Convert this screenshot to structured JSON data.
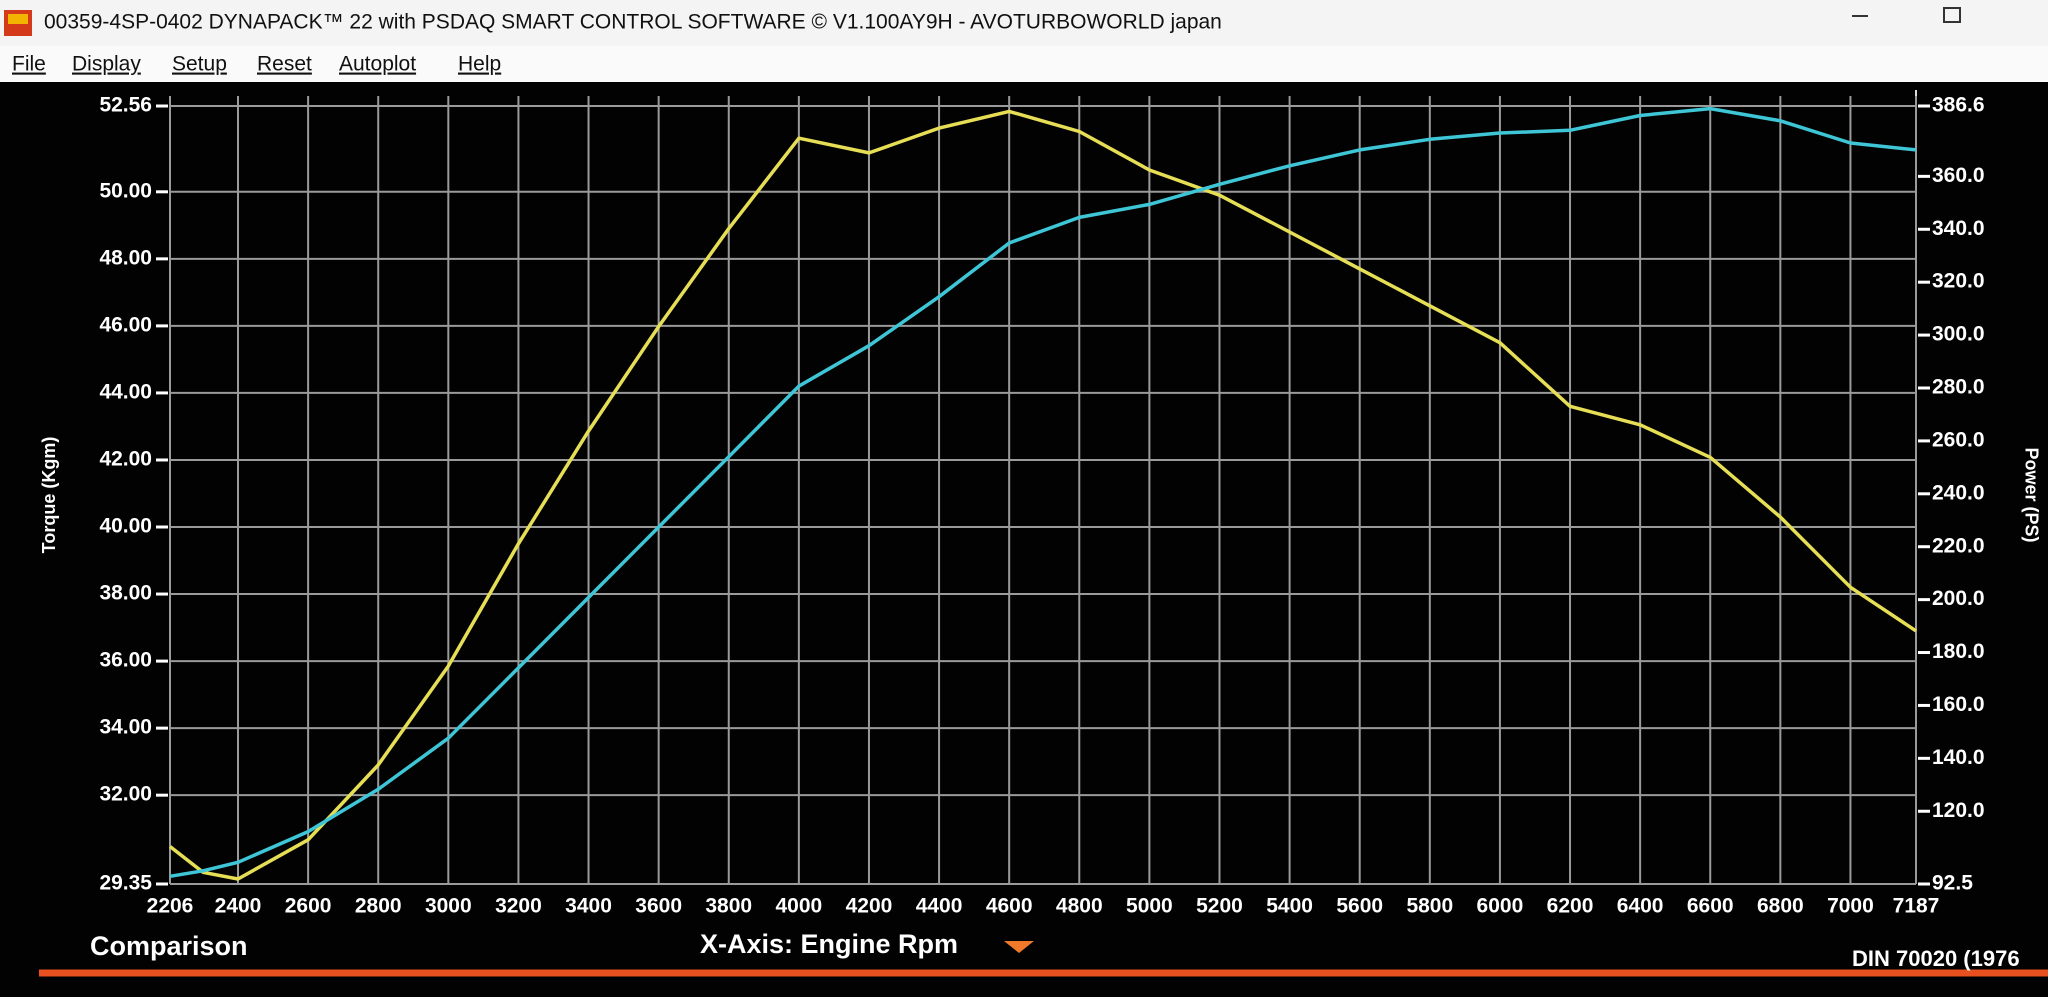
{
  "window": {
    "title": "00359-4SP-0402 DYNAPACK™ 22 with PSDAQ SMART CONTROL SOFTWARE © V1.100AY9H - AVOTURBOWORLD japan",
    "menu": [
      "File",
      "Display",
      "Setup",
      "Reset",
      "Autoplot",
      "Help"
    ]
  },
  "footer": {
    "left": "Comparison",
    "x_axis_selector": "X-Axis: Engine Rpm",
    "standard": "DIN 70020 (1976"
  },
  "chart_data": {
    "type": "line",
    "y_label": "Torque (Kgm)",
    "y2_label": "Power (PS)",
    "x": [
      2206,
      2300,
      2400,
      2600,
      2800,
      3000,
      3200,
      3400,
      3600,
      3800,
      4000,
      4200,
      4400,
      4600,
      4800,
      5000,
      5200,
      5400,
      5600,
      5800,
      6000,
      6200,
      6400,
      6600,
      6800,
      7000,
      7187
    ],
    "series": [
      {
        "name": "Torque",
        "color": "#e6de55",
        "values": [
          30.47,
          29.7,
          29.5,
          30.67,
          32.9,
          35.85,
          39.5,
          42.86,
          45.98,
          48.9,
          51.6,
          51.16,
          51.9,
          52.4,
          51.8,
          50.65,
          49.9,
          48.8,
          47.7,
          46.6,
          45.5,
          43.6,
          43.05,
          42.08,
          40.3,
          38.2,
          36.9
        ]
      },
      {
        "name": "Power",
        "color": "#3fc6d6",
        "axis": "y2",
        "values": [
          95.4,
          97.5,
          100.7,
          112.3,
          128.3,
          147.6,
          174.2,
          200.8,
          227.4,
          254,
          280.7,
          296,
          314.5,
          334.8,
          344.5,
          349.4,
          357,
          364,
          370,
          374,
          376.4,
          377.4,
          383,
          385.6,
          381,
          372.6,
          370
        ]
      }
    ],
    "xlim": [
      2206,
      7187
    ],
    "xticks": [
      2206,
      2400,
      2600,
      2800,
      3000,
      3200,
      3400,
      3600,
      3800,
      4000,
      4200,
      4400,
      4600,
      4800,
      5000,
      5200,
      5400,
      5600,
      5800,
      6000,
      6200,
      6400,
      6600,
      6800,
      7000,
      7187
    ],
    "ylim": [
      29.35,
      52.56
    ],
    "yticks": [
      29.35,
      {
        "value": 32,
        "label": "32.00"
      },
      {
        "value": 34,
        "label": "34.00"
      },
      {
        "value": 36,
        "label": "36.00"
      },
      {
        "value": 38,
        "label": "38.00"
      },
      {
        "value": 40,
        "label": "40.00"
      },
      {
        "value": 42,
        "label": "42.00"
      },
      {
        "value": 44,
        "label": "44.00"
      },
      {
        "value": 46,
        "label": "46.00"
      },
      {
        "value": 48,
        "label": "48.00"
      },
      {
        "value": 50,
        "label": "50.00"
      },
      52.56
    ],
    "y2lim": [
      92.5,
      386.6
    ],
    "y2ticks": [
      92.5,
      {
        "value": 120,
        "label": "120.0"
      },
      {
        "value": 140,
        "label": "140.0"
      },
      {
        "value": 160,
        "label": "160.0"
      },
      {
        "value": 180,
        "label": "180.0"
      },
      {
        "value": 200,
        "label": "200.0"
      },
      {
        "value": 220,
        "label": "220.0"
      },
      {
        "value": 240,
        "label": "240.0"
      },
      {
        "value": 260,
        "label": "260.0"
      },
      {
        "value": 280,
        "label": "280.0"
      },
      {
        "value": 300,
        "label": "300.0"
      },
      {
        "value": 320,
        "label": "320.0"
      },
      {
        "value": 340,
        "label": "340.0"
      },
      {
        "value": 360,
        "label": "360.0"
      },
      386.6
    ],
    "grid": true
  }
}
